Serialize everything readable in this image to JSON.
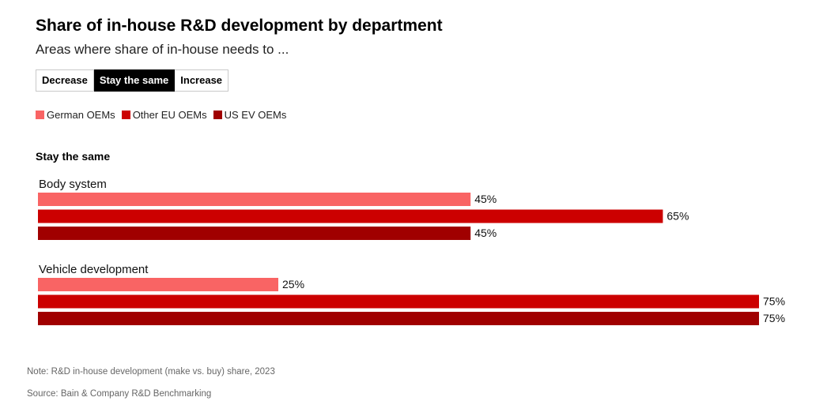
{
  "title": "Share of in-house R&D development by department",
  "subtitle": "Areas where share of in-house needs to ...",
  "tabs": [
    {
      "label": "Decrease",
      "active": false
    },
    {
      "label": "Stay the same",
      "active": true
    },
    {
      "label": "Increase",
      "active": false
    }
  ],
  "section_title": "Stay the same",
  "footer": {
    "note": "Note: R&D in-house development (make vs. buy) share, 2023",
    "source": "Source: Bain & Company R&D Benchmarking"
  },
  "chart_data": {
    "type": "bar",
    "orientation": "horizontal",
    "categories": [
      "Body system",
      "Vehicle development"
    ],
    "series": [
      {
        "name": "German OEMs",
        "values": [
          45,
          25
        ],
        "color": "#f96464"
      },
      {
        "name": "Other EU OEMs",
        "values": [
          65,
          75
        ],
        "color": "#cc0000"
      },
      {
        "name": "US EV OEMs",
        "values": [
          45,
          75
        ],
        "color": "#a00000"
      }
    ],
    "value_suffix": "%",
    "xlim": [
      0,
      100
    ],
    "grid": false,
    "legend_position": "top-left"
  }
}
